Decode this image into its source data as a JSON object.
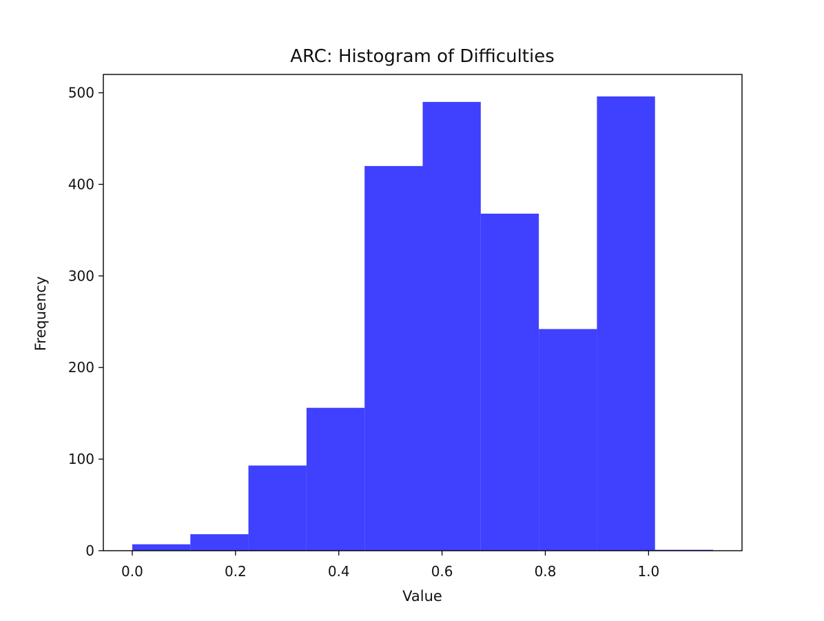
{
  "chart_data": {
    "type": "bar",
    "title": "ARC: Histogram of Difficulties",
    "xlabel": "Value",
    "ylabel": "Frequency",
    "bins": [
      {
        "start": 0.0,
        "end": 0.1125,
        "count": 7
      },
      {
        "start": 0.1125,
        "end": 0.225,
        "count": 18
      },
      {
        "start": 0.225,
        "end": 0.3375,
        "count": 93
      },
      {
        "start": 0.3375,
        "end": 0.45,
        "count": 156
      },
      {
        "start": 0.45,
        "end": 0.5625,
        "count": 420
      },
      {
        "start": 0.5625,
        "end": 0.675,
        "count": 490
      },
      {
        "start": 0.675,
        "end": 0.7875,
        "count": 368
      },
      {
        "start": 0.7875,
        "end": 0.9,
        "count": 242
      },
      {
        "start": 0.9,
        "end": 1.0125,
        "count": 496
      },
      {
        "start": 1.0125,
        "end": 1.125,
        "count": 1
      }
    ],
    "xlim": [
      -0.056,
      1.181
    ],
    "ylim": [
      0,
      520
    ],
    "xticks": [
      "0.0",
      "0.2",
      "0.4",
      "0.6",
      "0.8",
      "1.0"
    ],
    "xtick_values": [
      0.0,
      0.2,
      0.4,
      0.6,
      0.8,
      1.0
    ],
    "yticks": [
      "0",
      "100",
      "200",
      "300",
      "400",
      "500"
    ],
    "ytick_values": [
      0,
      100,
      200,
      300,
      400,
      500
    ],
    "bar_color": "#4040ff",
    "grid": false,
    "legend": "none"
  }
}
